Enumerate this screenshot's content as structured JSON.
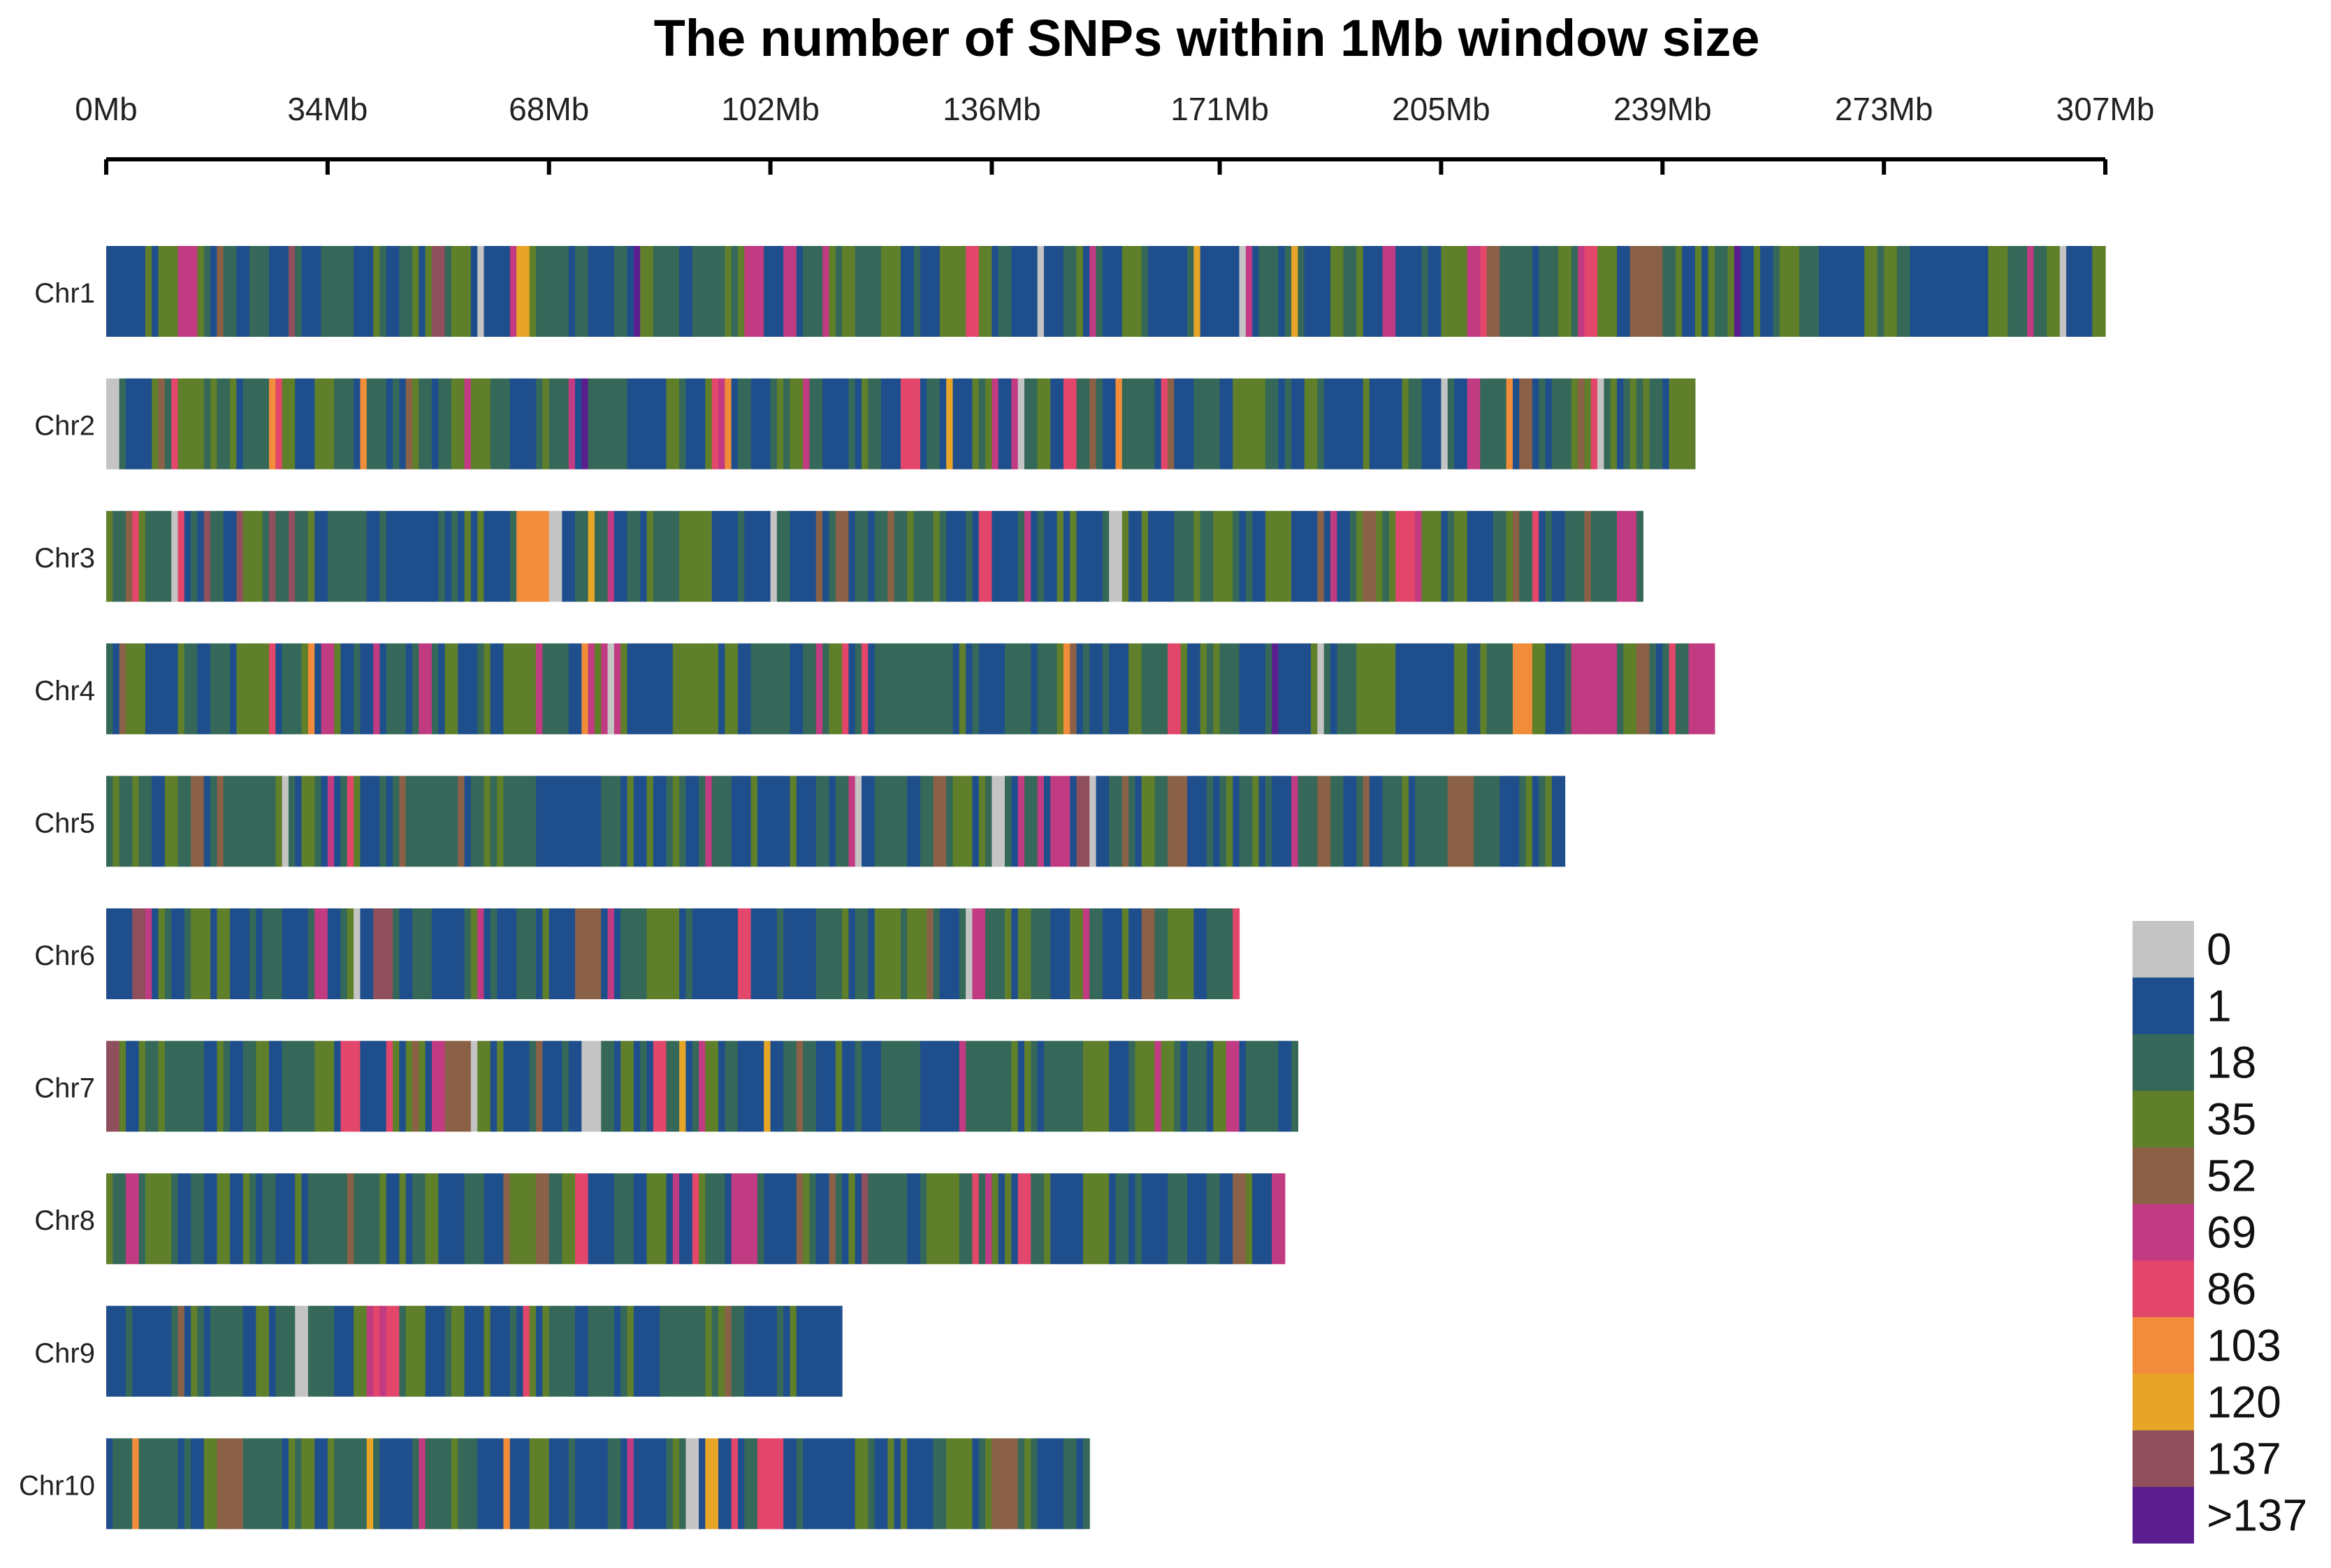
{
  "chart_data": {
    "type": "heatmap",
    "title": "The number of SNPs within 1Mb window size",
    "x_axis": {
      "unit": "Mb",
      "range": [
        0,
        307
      ],
      "ticks": [
        0,
        34,
        68,
        102,
        136,
        171,
        205,
        239,
        273,
        307
      ],
      "tick_labels": [
        "0Mb",
        "34Mb",
        "68Mb",
        "102Mb",
        "136Mb",
        "171Mb",
        "205Mb",
        "239Mb",
        "273Mb",
        "307Mb"
      ]
    },
    "chromosomes": [
      {
        "name": "Chr1",
        "length_mb": 307
      },
      {
        "name": "Chr2",
        "length_mb": 244
      },
      {
        "name": "Chr3",
        "length_mb": 236
      },
      {
        "name": "Chr4",
        "length_mb": 247
      },
      {
        "name": "Chr5",
        "length_mb": 224
      },
      {
        "name": "Chr6",
        "length_mb": 174
      },
      {
        "name": "Chr7",
        "length_mb": 183
      },
      {
        "name": "Chr8",
        "length_mb": 181
      },
      {
        "name": "Chr9",
        "length_mb": 113
      },
      {
        "name": "Chr10",
        "length_mb": 151
      }
    ],
    "legend": {
      "labels": [
        "0",
        "1",
        "18",
        "35",
        "52",
        "69",
        "86",
        "103",
        "120",
        "137",
        ">137"
      ],
      "colors": [
        "#c4c4c4",
        "#1f4e8c",
        "#356859",
        "#5f7f2a",
        "#8a6147",
        "#c03b82",
        "#e2466b",
        "#f08c3a",
        "#e7a528",
        "#8f4f5c",
        "#5b1e8f"
      ],
      "position": "bottom-right"
    }
  }
}
